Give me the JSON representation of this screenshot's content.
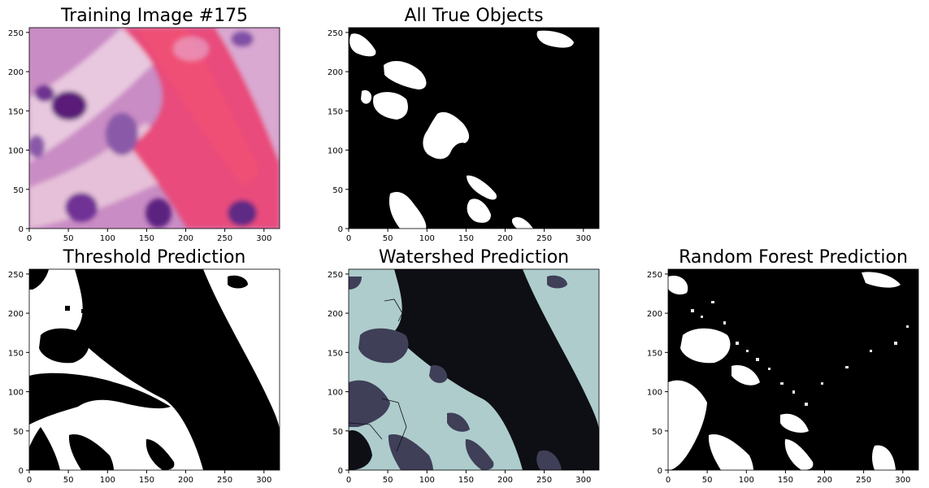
{
  "chart_data": [
    {
      "type": "image",
      "title": "Training Image #175",
      "colormap": "rgb histology (H&E stain)",
      "xticks": [
        "0",
        "50",
        "100",
        "150",
        "200",
        "250",
        "300"
      ],
      "yticks": [
        "0",
        "50",
        "100",
        "150",
        "200",
        "250"
      ],
      "xlim": [
        0,
        320
      ],
      "ylim": [
        0,
        256
      ]
    },
    {
      "type": "image",
      "title": "All True Objects",
      "colormap": "binary (white objects on black)",
      "xticks": [
        "0",
        "50",
        "100",
        "150",
        "200",
        "250",
        "300"
      ],
      "yticks": [
        "0",
        "50",
        "100",
        "150",
        "200",
        "250"
      ],
      "xlim": [
        0,
        320
      ],
      "ylim": [
        0,
        256
      ]
    },
    {
      "type": "image",
      "title": "Threshold Prediction",
      "colormap": "binary (white / black)",
      "xticks": [
        "0",
        "50",
        "100",
        "150",
        "200",
        "250",
        "300"
      ],
      "yticks": [
        "0",
        "50",
        "100",
        "150",
        "200",
        "250"
      ],
      "xlim": [
        0,
        320
      ],
      "ylim": [
        0,
        256
      ]
    },
    {
      "type": "image",
      "title": "Watershed Prediction",
      "colormap": "bone (labelled regions)",
      "xticks": [
        "0",
        "50",
        "100",
        "150",
        "200",
        "250",
        "300"
      ],
      "yticks": [
        "0",
        "50",
        "100",
        "150",
        "200",
        "250"
      ],
      "xlim": [
        0,
        320
      ],
      "ylim": [
        0,
        256
      ]
    },
    {
      "type": "image",
      "title": "Random Forest Prediction",
      "colormap": "binary (white / black)",
      "xticks": [
        "0",
        "50",
        "100",
        "150",
        "200",
        "250",
        "300"
      ],
      "yticks": [
        "0",
        "50",
        "100",
        "150",
        "200",
        "250"
      ],
      "xlim": [
        0,
        320
      ],
      "ylim": [
        0,
        256
      ]
    }
  ],
  "colors": {
    "he_background": "#d49ac8",
    "he_stroma": "#e8497a",
    "he_nucleus": "#6a2f88",
    "binary_white": "#ffffff",
    "binary_black": "#000000",
    "watershed_light": "#aecccc",
    "watershed_dark": "#0e0f14",
    "watershed_mid": "#3f3f58"
  }
}
